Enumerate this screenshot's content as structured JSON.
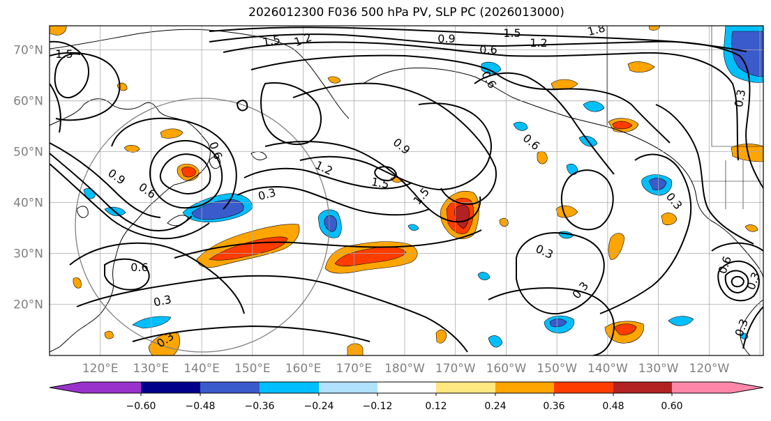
{
  "title": "2026012300 F036 500 hPa PV, SLP PC (2026013000)",
  "lat_labels": [
    "70°N",
    "60°N",
    "50°N",
    "40°N",
    "30°N",
    "20°N"
  ],
  "lon_labels": [
    "120°E",
    "130°E",
    "140°E",
    "150°E",
    "160°E",
    "170°E",
    "180°W",
    "170°W",
    "160°W",
    "150°W",
    "140°W",
    "130°W",
    "120°W"
  ],
  "colorbar": {
    "colors": [
      "#9932CC",
      "#00008B",
      "#3A5BCC",
      "#00BFFF",
      "#B0E2FF",
      "#FFFFFF",
      "#FFE880",
      "#FFA500",
      "#FF3C00",
      "#B22222",
      "#FF88AA"
    ],
    "ticks": [
      "−0.60",
      "−0.48",
      "−0.36",
      "−0.24",
      "−0.12",
      "0.12",
      "0.24",
      "0.36",
      "0.48",
      "0.60"
    ]
  },
  "contour_labels": [
    "1.5",
    "1.2",
    "0.9",
    "0.6",
    "1.5",
    "1.2",
    "1.8",
    "1.5",
    "0.6",
    "0.9",
    "1.2",
    "1.5",
    "1.5",
    "0.3",
    "0.6",
    "0.9",
    "0.6",
    "0.6",
    "0.3",
    "0.3",
    "0.3",
    "0.3",
    "0.3",
    "0.6",
    "0.3",
    "0.6",
    "0.3",
    "0.3"
  ]
}
